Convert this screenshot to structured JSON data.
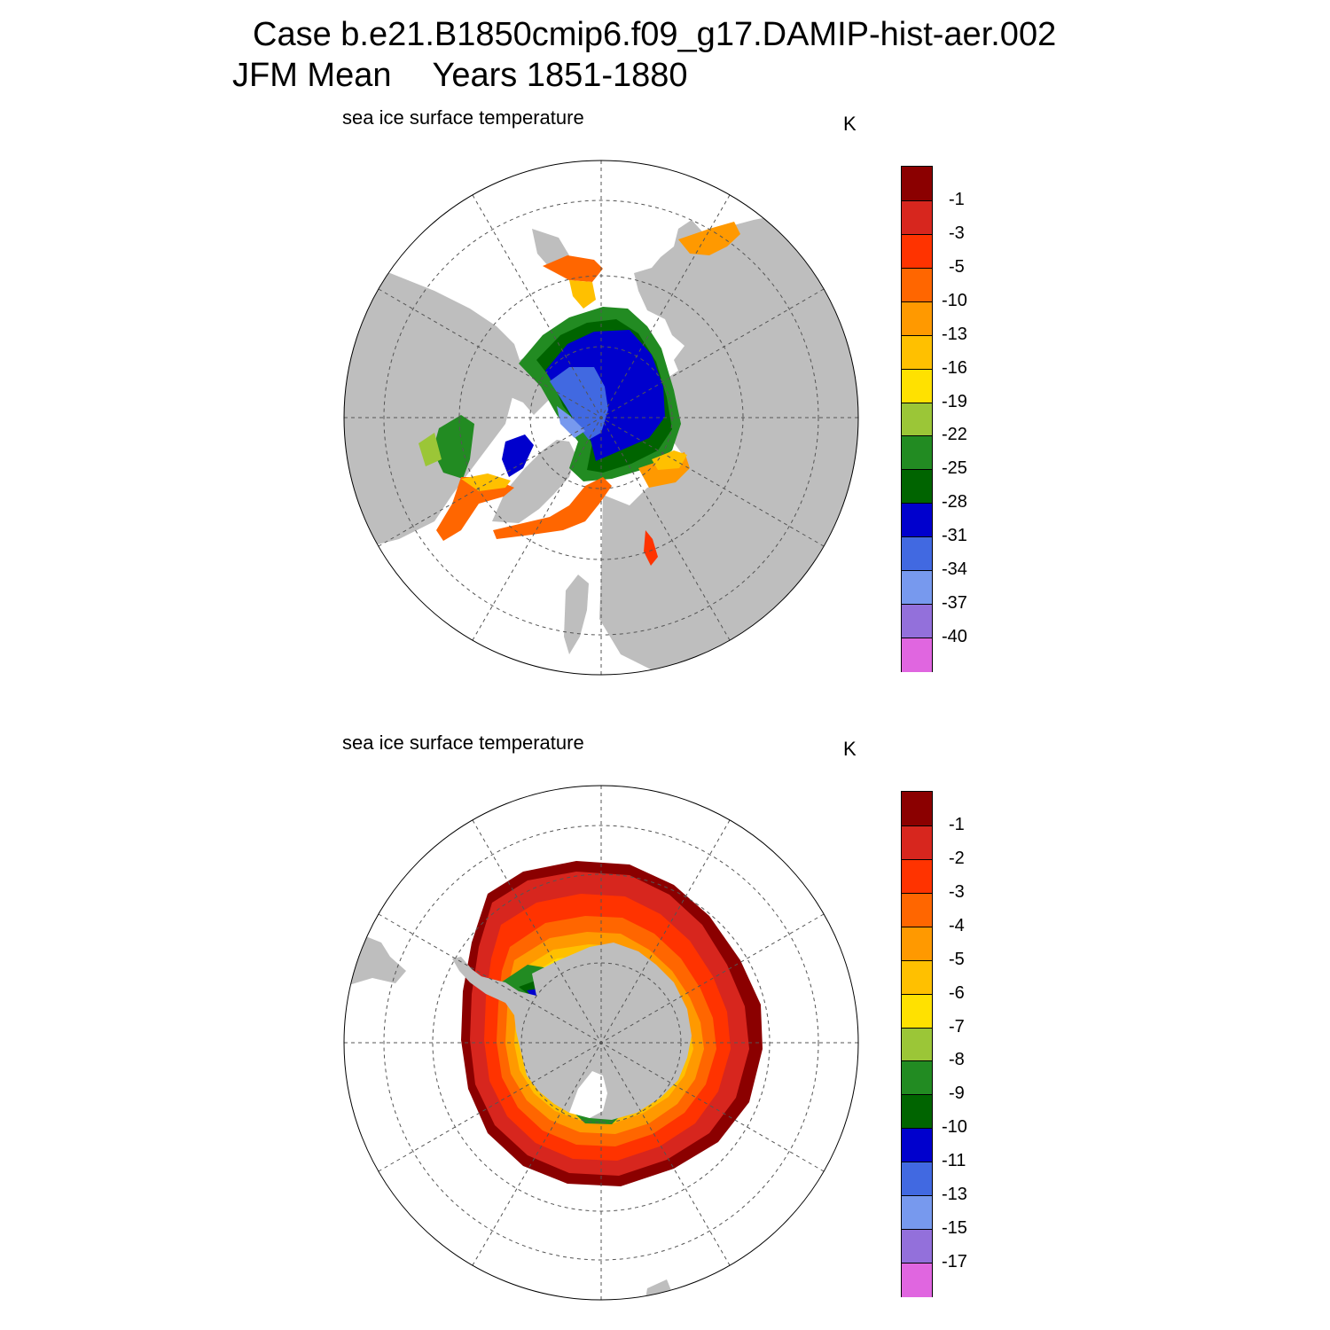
{
  "header": {
    "case_title": "Case b.e21.B1850cmip6.f09_g17.DAMIP-hist-aer.002",
    "season": "JFM Mean",
    "years": "Years 1851-1880"
  },
  "panels": [
    {
      "id": "arctic",
      "subtitle": "sea ice surface temperature",
      "units": "K",
      "hemisphere": "north",
      "colorbar": {
        "colors": [
          "#8b0000",
          "#d7261e",
          "#ff3300",
          "#ff6600",
          "#ff9900",
          "#ffc000",
          "#ffe100",
          "#9bc637",
          "#228b22",
          "#006400",
          "#0000cd",
          "#4169e1",
          "#7799ee",
          "#9370db",
          "#e066e0"
        ],
        "labels": [
          "-1",
          "-3",
          "-5",
          "-10",
          "-13",
          "-16",
          "-19",
          "-22",
          "-25",
          "-28",
          "-31",
          "-34",
          "-37",
          "-40"
        ]
      }
    },
    {
      "id": "antarctic",
      "subtitle": "sea ice surface temperature",
      "units": "K",
      "hemisphere": "south",
      "colorbar": {
        "colors": [
          "#8b0000",
          "#d7261e",
          "#ff3300",
          "#ff6600",
          "#ff9900",
          "#ffc000",
          "#ffe100",
          "#9bc637",
          "#228b22",
          "#006400",
          "#0000cd",
          "#4169e1",
          "#7799ee",
          "#9370db",
          "#e066e0"
        ],
        "labels": [
          "-1",
          "-2",
          "-3",
          "-4",
          "-5",
          "-6",
          "-7",
          "-8",
          "-9",
          "-10",
          "-11",
          "-13",
          "-15",
          "-17"
        ]
      }
    }
  ],
  "colors": {
    "land": "#bebebe",
    "ocean": "#ffffff",
    "graticule": "#555555"
  }
}
